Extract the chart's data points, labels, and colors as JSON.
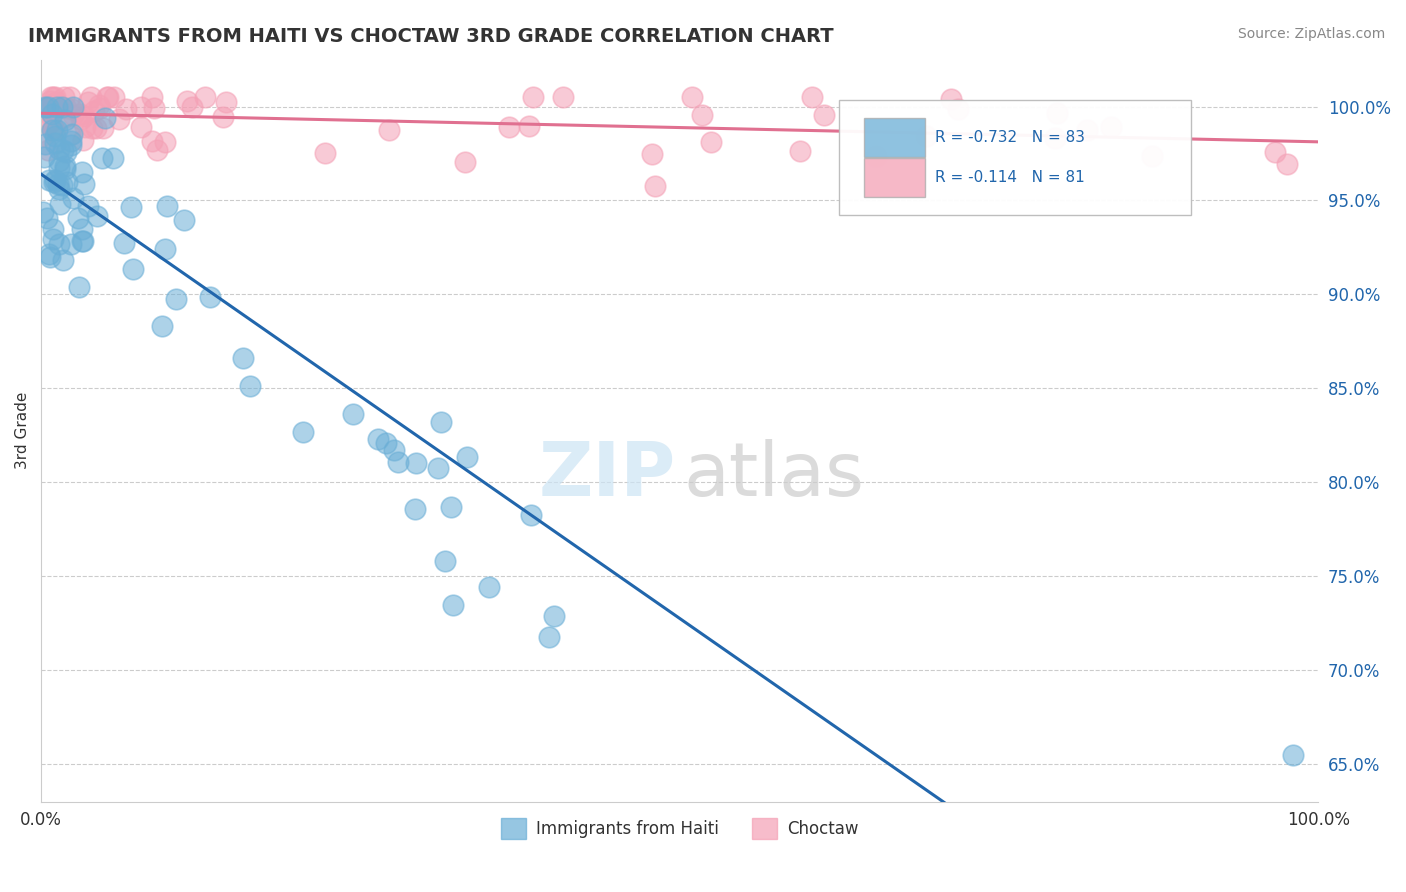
{
  "title": "IMMIGRANTS FROM HAITI VS CHOCTAW 3RD GRADE CORRELATION CHART",
  "source_text": "Source: ZipAtlas.com",
  "ylabel": "3rd Grade",
  "legend_haiti": "Immigrants from Haiti",
  "legend_choctaw": "Choctaw",
  "r_haiti": "-0.732",
  "n_haiti": "83",
  "r_choctaw": "-0.114",
  "n_choctaw": "81",
  "ytick_vals": [
    0.65,
    0.7,
    0.75,
    0.8,
    0.85,
    0.9,
    0.95,
    1.0
  ],
  "color_haiti": "#6aaed6",
  "color_choctaw": "#f4a0b5",
  "color_line_haiti": "#2166ac",
  "color_line_choctaw": "#e07090"
}
